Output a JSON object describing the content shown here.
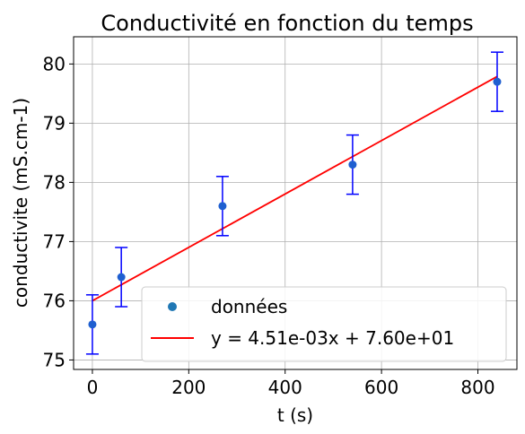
{
  "chart_data": {
    "type": "scatter",
    "title": "Conductivité en fonction du temps",
    "xlabel": "t (s)",
    "ylabel": "conductivite (mS.cm-1)",
    "xlim": [
      -39,
      881
    ],
    "ylim": [
      74.84,
      80.46
    ],
    "x_ticks": [
      0,
      200,
      400,
      600,
      800
    ],
    "y_ticks": [
      75,
      76,
      77,
      78,
      79,
      80
    ],
    "grid": true,
    "legend_position": "lower-right",
    "series": [
      {
        "name": "données",
        "kind": "scatter",
        "color": "#1f5fd0",
        "error_color": "#0000ff",
        "points": [
          {
            "x": 0,
            "y": 75.6,
            "err": 0.5
          },
          {
            "x": 60,
            "y": 76.4,
            "err": 0.5
          },
          {
            "x": 270,
            "y": 77.6,
            "err": 0.5
          },
          {
            "x": 540,
            "y": 78.3,
            "err": 0.5
          },
          {
            "x": 840,
            "y": 79.7,
            "err": 0.5
          }
        ]
      },
      {
        "name": "y = 4.51e-03x + 7.60e+01",
        "kind": "line",
        "color": "#ff0000",
        "slope": 0.00451,
        "intercept": 76.0,
        "x_range": [
          0,
          840
        ]
      }
    ]
  }
}
